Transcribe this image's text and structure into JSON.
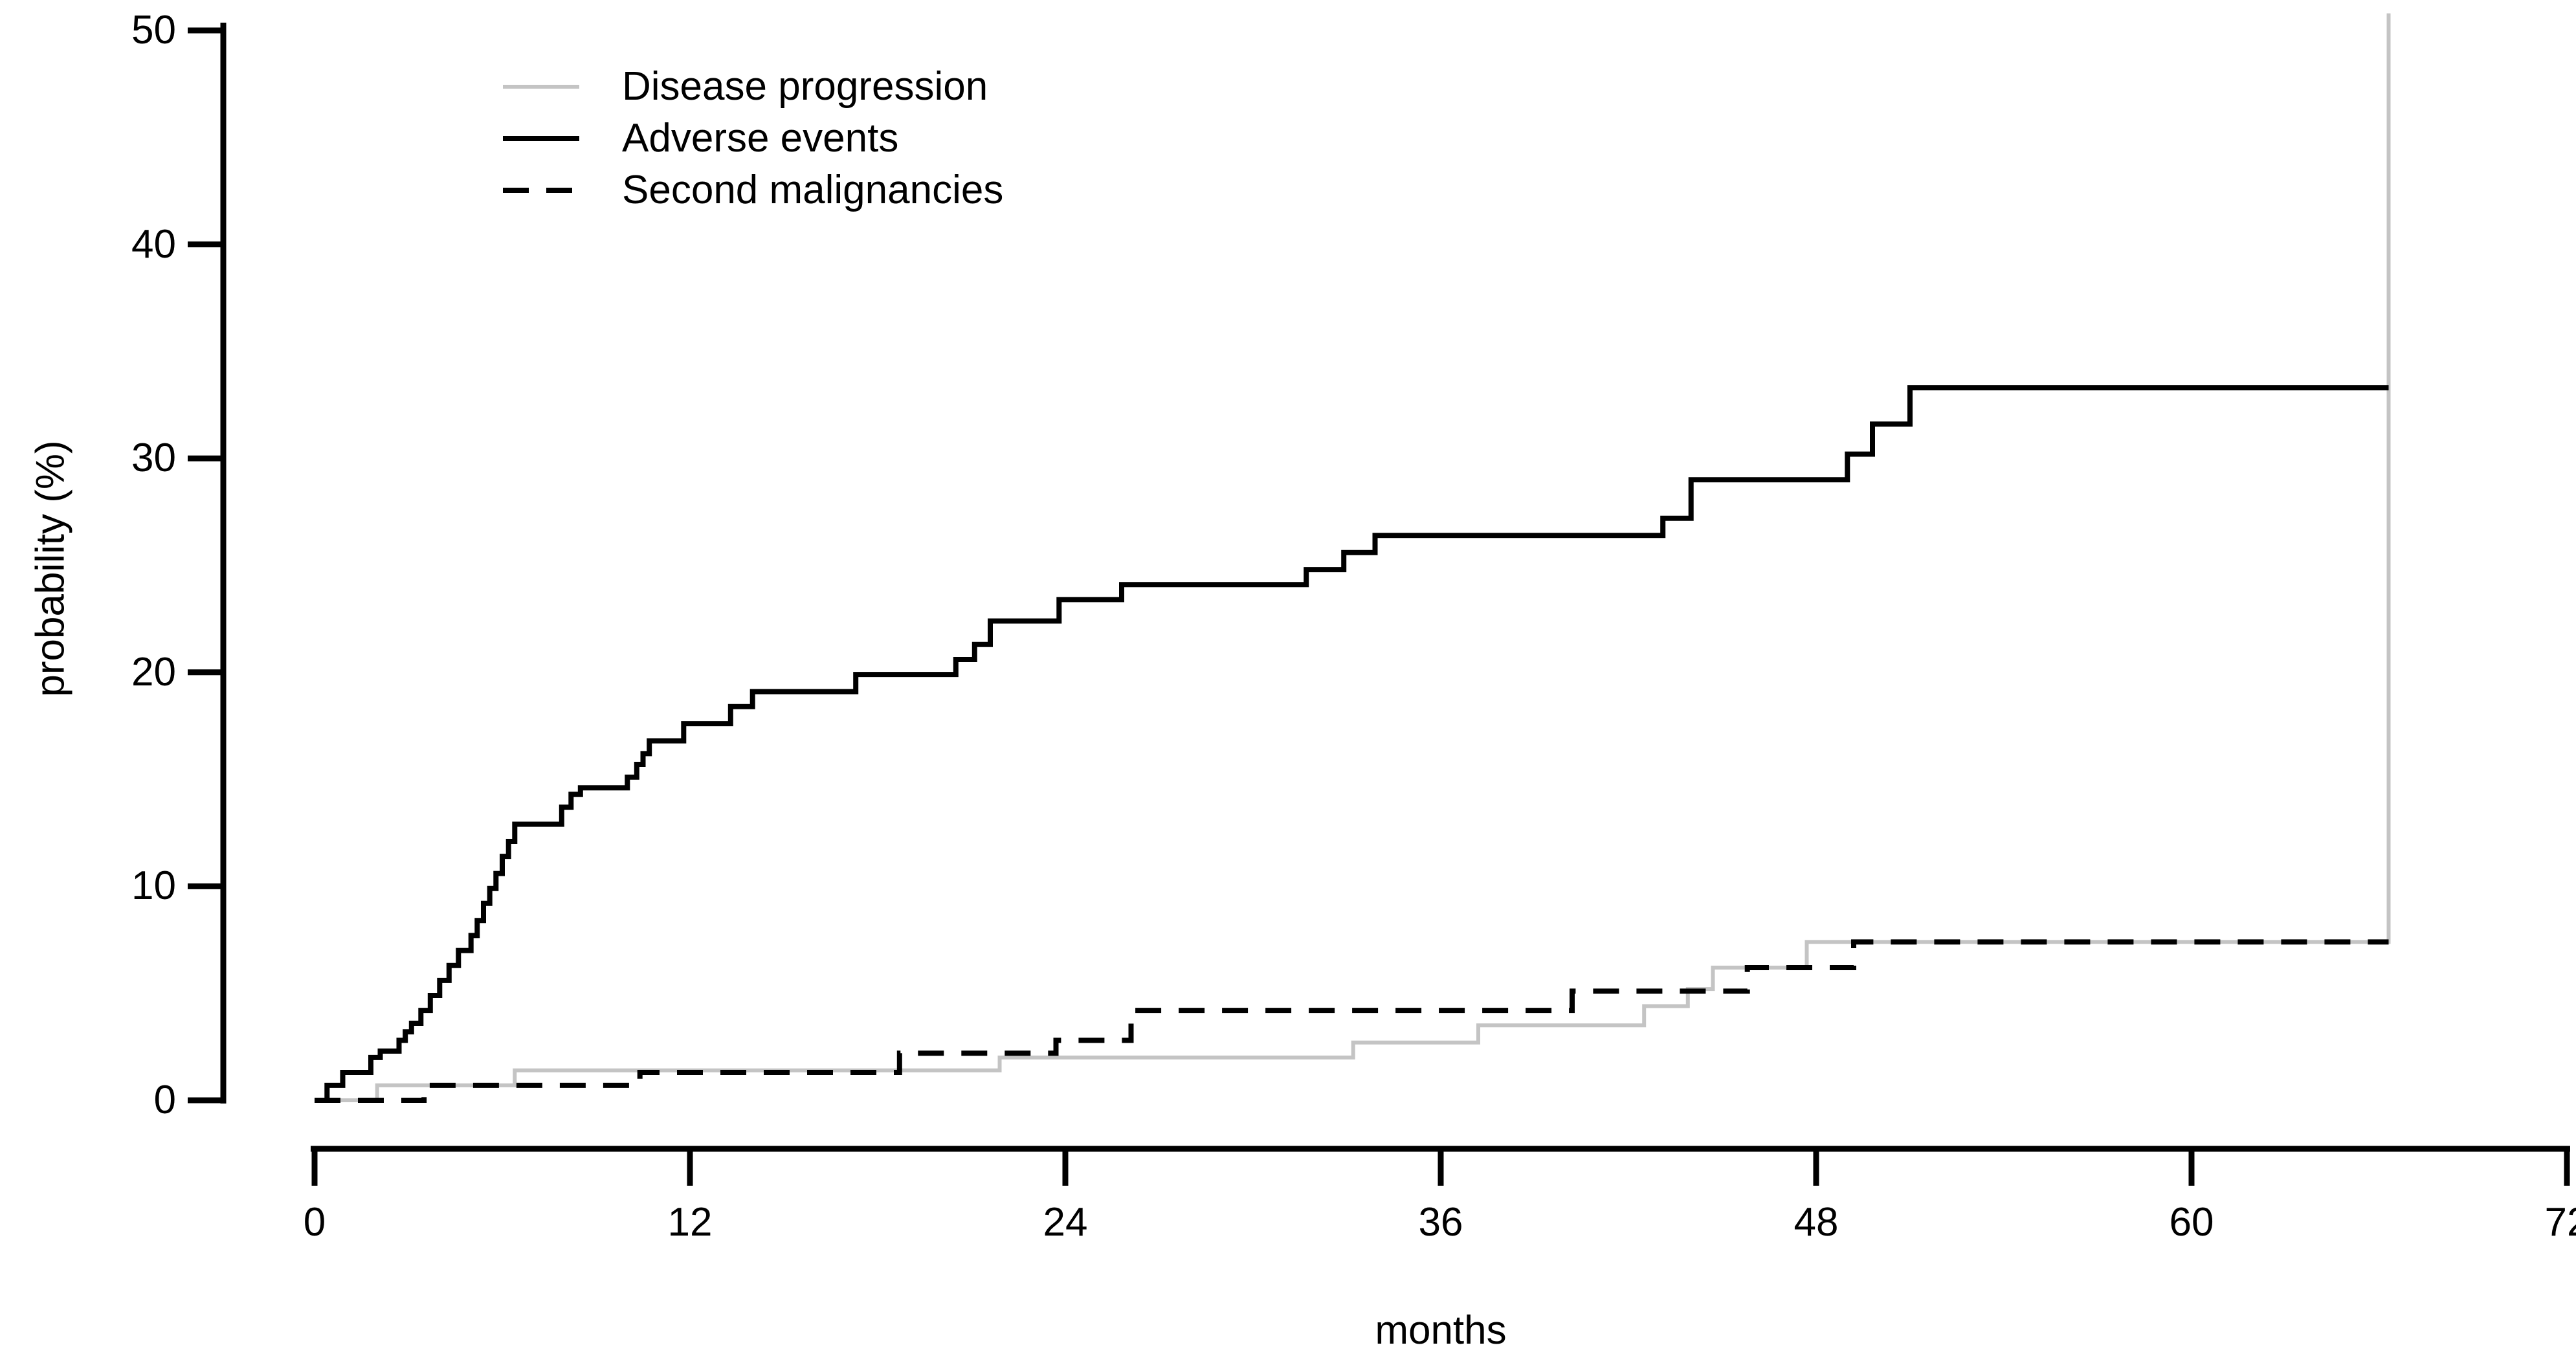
{
  "chart_data": {
    "type": "line",
    "subtype": "step-cumulative-incidence",
    "title": "",
    "xlabel": "months",
    "ylabel": "probability (%)",
    "xlim": [
      0,
      72
    ],
    "ylim": [
      0,
      50
    ],
    "x_ticks": [
      0,
      12,
      24,
      36,
      48,
      60,
      72
    ],
    "y_ticks": [
      0,
      10,
      20,
      30,
      40,
      50
    ],
    "grid": false,
    "legend_position": "top-left-inside",
    "colors": {
      "gray": "#c4c4c4",
      "black": "#000000",
      "background": "#ffffff"
    },
    "end_month": 66.3,
    "series": [
      {
        "name": "Disease progression",
        "style": "gray-solid",
        "steps": [
          [
            0,
            0
          ],
          [
            2.0,
            0.7
          ],
          [
            6.4,
            1.4
          ],
          [
            21.9,
            2.0
          ],
          [
            33.2,
            2.7
          ],
          [
            37.2,
            3.5
          ],
          [
            42.5,
            4.4
          ],
          [
            43.9,
            5.2
          ],
          [
            44.7,
            6.2
          ],
          [
            47.7,
            7.4
          ],
          [
            66.3,
            50.8
          ]
        ]
      },
      {
        "name": "Adverse events",
        "style": "black-solid",
        "steps": [
          [
            0,
            0
          ],
          [
            0.4,
            0.7
          ],
          [
            0.9,
            1.3
          ],
          [
            1.8,
            2.0
          ],
          [
            2.1,
            2.3
          ],
          [
            2.7,
            2.8
          ],
          [
            2.9,
            3.2
          ],
          [
            3.1,
            3.6
          ],
          [
            3.4,
            4.2
          ],
          [
            3.7,
            4.9
          ],
          [
            4.0,
            5.6
          ],
          [
            4.3,
            6.3
          ],
          [
            4.6,
            7.0
          ],
          [
            5.0,
            7.7
          ],
          [
            5.2,
            8.4
          ],
          [
            5.4,
            9.2
          ],
          [
            5.6,
            9.9
          ],
          [
            5.8,
            10.6
          ],
          [
            6.0,
            11.4
          ],
          [
            6.2,
            12.1
          ],
          [
            6.4,
            12.9
          ],
          [
            7.9,
            13.7
          ],
          [
            8.2,
            14.3
          ],
          [
            8.5,
            14.6
          ],
          [
            10.0,
            15.1
          ],
          [
            10.3,
            15.7
          ],
          [
            10.5,
            16.2
          ],
          [
            10.7,
            16.8
          ],
          [
            11.8,
            17.6
          ],
          [
            13.3,
            18.4
          ],
          [
            14.0,
            19.1
          ],
          [
            17.3,
            19.9
          ],
          [
            20.5,
            20.6
          ],
          [
            21.1,
            21.3
          ],
          [
            21.6,
            22.4
          ],
          [
            23.8,
            23.4
          ],
          [
            25.8,
            24.1
          ],
          [
            31.7,
            24.8
          ],
          [
            32.9,
            25.6
          ],
          [
            33.9,
            26.4
          ],
          [
            43.1,
            27.2
          ],
          [
            44.0,
            29.0
          ],
          [
            49.0,
            30.2
          ],
          [
            49.8,
            31.6
          ],
          [
            51.0,
            33.3
          ]
        ]
      },
      {
        "name": "Second malignancies",
        "style": "black-dashed",
        "steps": [
          [
            0,
            0
          ],
          [
            3.5,
            0.7
          ],
          [
            10.4,
            1.3
          ],
          [
            18.7,
            2.2
          ],
          [
            23.7,
            2.8
          ],
          [
            26.1,
            4.2
          ],
          [
            40.2,
            5.1
          ],
          [
            45.8,
            6.2
          ],
          [
            49.2,
            7.4
          ]
        ]
      }
    ]
  }
}
